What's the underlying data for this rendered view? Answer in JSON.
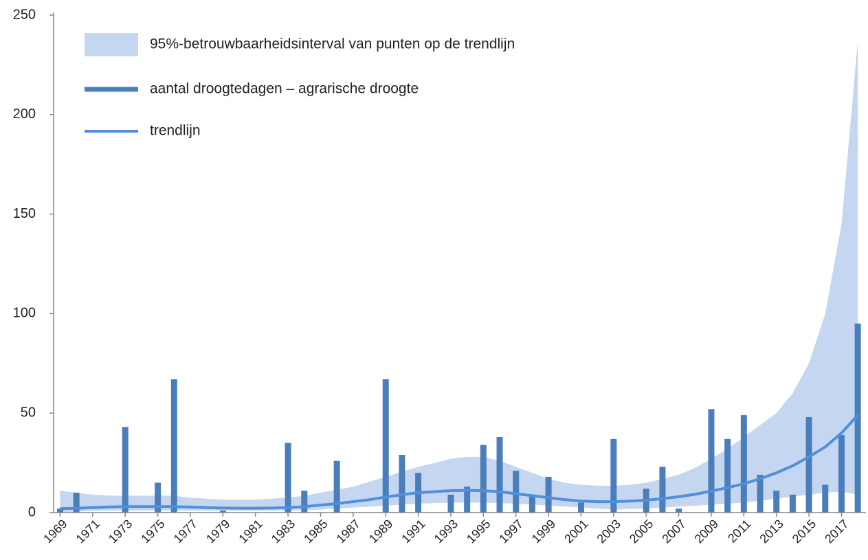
{
  "chart_data": {
    "type": "bar",
    "x": [
      1969,
      1970,
      1971,
      1972,
      1973,
      1974,
      1975,
      1976,
      1977,
      1978,
      1979,
      1980,
      1981,
      1982,
      1983,
      1984,
      1985,
      1986,
      1987,
      1988,
      1989,
      1990,
      1991,
      1992,
      1993,
      1994,
      1995,
      1996,
      1997,
      1998,
      1999,
      2000,
      2001,
      2002,
      2003,
      2004,
      2005,
      2006,
      2007,
      2008,
      2009,
      2010,
      2011,
      2012,
      2013,
      2014,
      2015,
      2016,
      2017,
      2018
    ],
    "series": [
      {
        "name": "95%-betrouwbaarheidsinterval van punten op de trendlijn",
        "type": "area",
        "color": "#c5d6f0",
        "values": [
          11,
          10,
          9,
          8.5,
          8.5,
          8.5,
          8.5,
          8.5,
          7.5,
          7,
          6.5,
          6.5,
          6.5,
          7,
          7.5,
          8.5,
          10,
          11.5,
          13,
          15.5,
          18,
          20.5,
          23,
          25,
          27,
          28,
          28,
          26,
          23,
          20,
          17,
          15,
          14,
          13.5,
          13.5,
          14,
          15,
          17,
          19,
          22.5,
          27,
          32,
          38,
          44,
          50,
          60,
          75,
          100,
          145,
          237
        ],
        "lower": [
          0.3,
          0.5,
          0.8,
          1,
          1,
          1,
          1,
          1,
          1,
          1,
          1,
          1,
          1,
          1,
          1,
          1.2,
          1.5,
          2,
          2.5,
          3,
          3.5,
          4,
          4.5,
          4.8,
          5,
          5,
          5,
          4.8,
          4.5,
          4,
          3.5,
          3,
          2.5,
          2,
          1.5,
          1.8,
          2,
          2.5,
          3,
          3.5,
          4,
          4.5,
          5,
          6,
          7,
          8,
          9,
          10,
          10.5,
          9
        ]
      },
      {
        "name": "aantal droogtedagen – agrarische droogte",
        "type": "bar",
        "color": "#4a7ebb",
        "values": [
          2,
          10,
          0,
          0,
          43,
          0,
          15,
          67,
          0,
          0,
          1,
          0,
          0,
          0,
          35,
          11,
          0,
          26,
          0,
          0,
          67,
          29,
          20,
          0,
          9,
          13,
          34,
          38,
          21,
          8,
          18,
          0,
          5,
          0,
          37,
          0,
          12,
          23,
          2,
          0,
          52,
          37,
          49,
          19,
          11,
          9,
          48,
          14,
          39,
          95
        ]
      },
      {
        "name": "trendlijn",
        "type": "line",
        "color": "#4f8fdc",
        "values": [
          2,
          2.2,
          2.5,
          2.8,
          3,
          3,
          3,
          3,
          2.8,
          2.5,
          2.3,
          2.2,
          2.2,
          2.3,
          2.5,
          3,
          3.8,
          4.5,
          5.5,
          6.5,
          7.8,
          9,
          10,
          10.5,
          11,
          11.2,
          11,
          10.5,
          9.5,
          8.5,
          7.5,
          6.5,
          5.8,
          5.5,
          5.5,
          5.8,
          6.2,
          7,
          8,
          9.2,
          10.8,
          12.5,
          14.5,
          17,
          20,
          23.5,
          28,
          33,
          40,
          49
        ]
      }
    ],
    "xlim": [
      1968.6,
      2018.5
    ],
    "xticks": [
      1969,
      1971,
      1973,
      1975,
      1977,
      1979,
      1981,
      1983,
      1985,
      1987,
      1989,
      1991,
      1993,
      1995,
      1997,
      1999,
      2001,
      2003,
      2005,
      2007,
      2009,
      2011,
      2013,
      2015,
      2017
    ],
    "ylim": [
      0,
      250
    ],
    "yticks": [
      0,
      50,
      100,
      150,
      200,
      250
    ]
  }
}
